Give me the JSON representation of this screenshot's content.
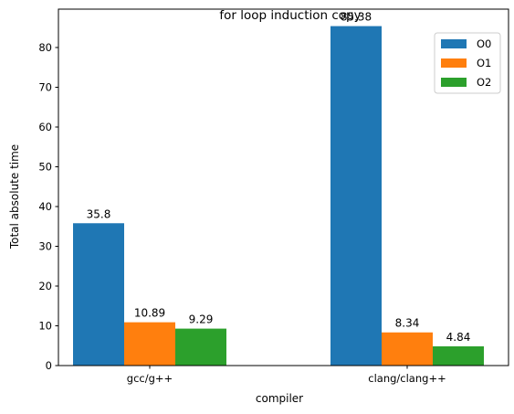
{
  "chart_data": {
    "type": "bar",
    "title": "for loop induction copy",
    "xlabel": "compiler",
    "ylabel": "Total absolute time",
    "categories": [
      "gcc/g++",
      "clang/clang++"
    ],
    "series": [
      {
        "name": "O0",
        "values": [
          35.8,
          85.38
        ],
        "labels": [
          "35.8",
          "85.38"
        ],
        "color": "#1f77b4"
      },
      {
        "name": "O1",
        "values": [
          10.89,
          8.34
        ],
        "labels": [
          "10.89",
          "8.34"
        ],
        "color": "#ff7f0e"
      },
      {
        "name": "O2",
        "values": [
          9.29,
          4.84
        ],
        "labels": [
          "9.29",
          "4.84"
        ],
        "color": "#2ca02c"
      }
    ],
    "ylim": [
      0,
      89.65
    ],
    "yticks": [
      0,
      10,
      20,
      30,
      40,
      50,
      60,
      70,
      80
    ],
    "grid": false,
    "legend_position": "top-right"
  }
}
